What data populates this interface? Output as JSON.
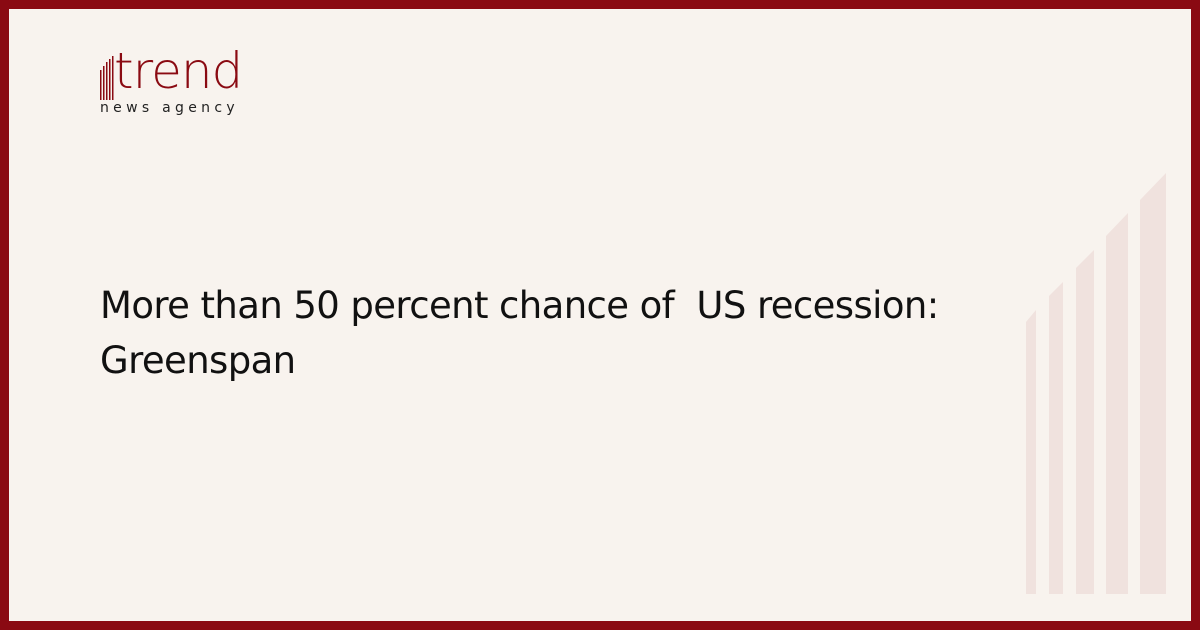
{
  "brand": {
    "name": "trend",
    "tagline": "news agency",
    "color": "#8a0a12"
  },
  "article": {
    "title": "More than 50 percent chance of  US recession: Greenspan"
  },
  "colors": {
    "background": "#f8f3ee",
    "frame": "#8a0a12",
    "decoration": "#f0e2de"
  }
}
